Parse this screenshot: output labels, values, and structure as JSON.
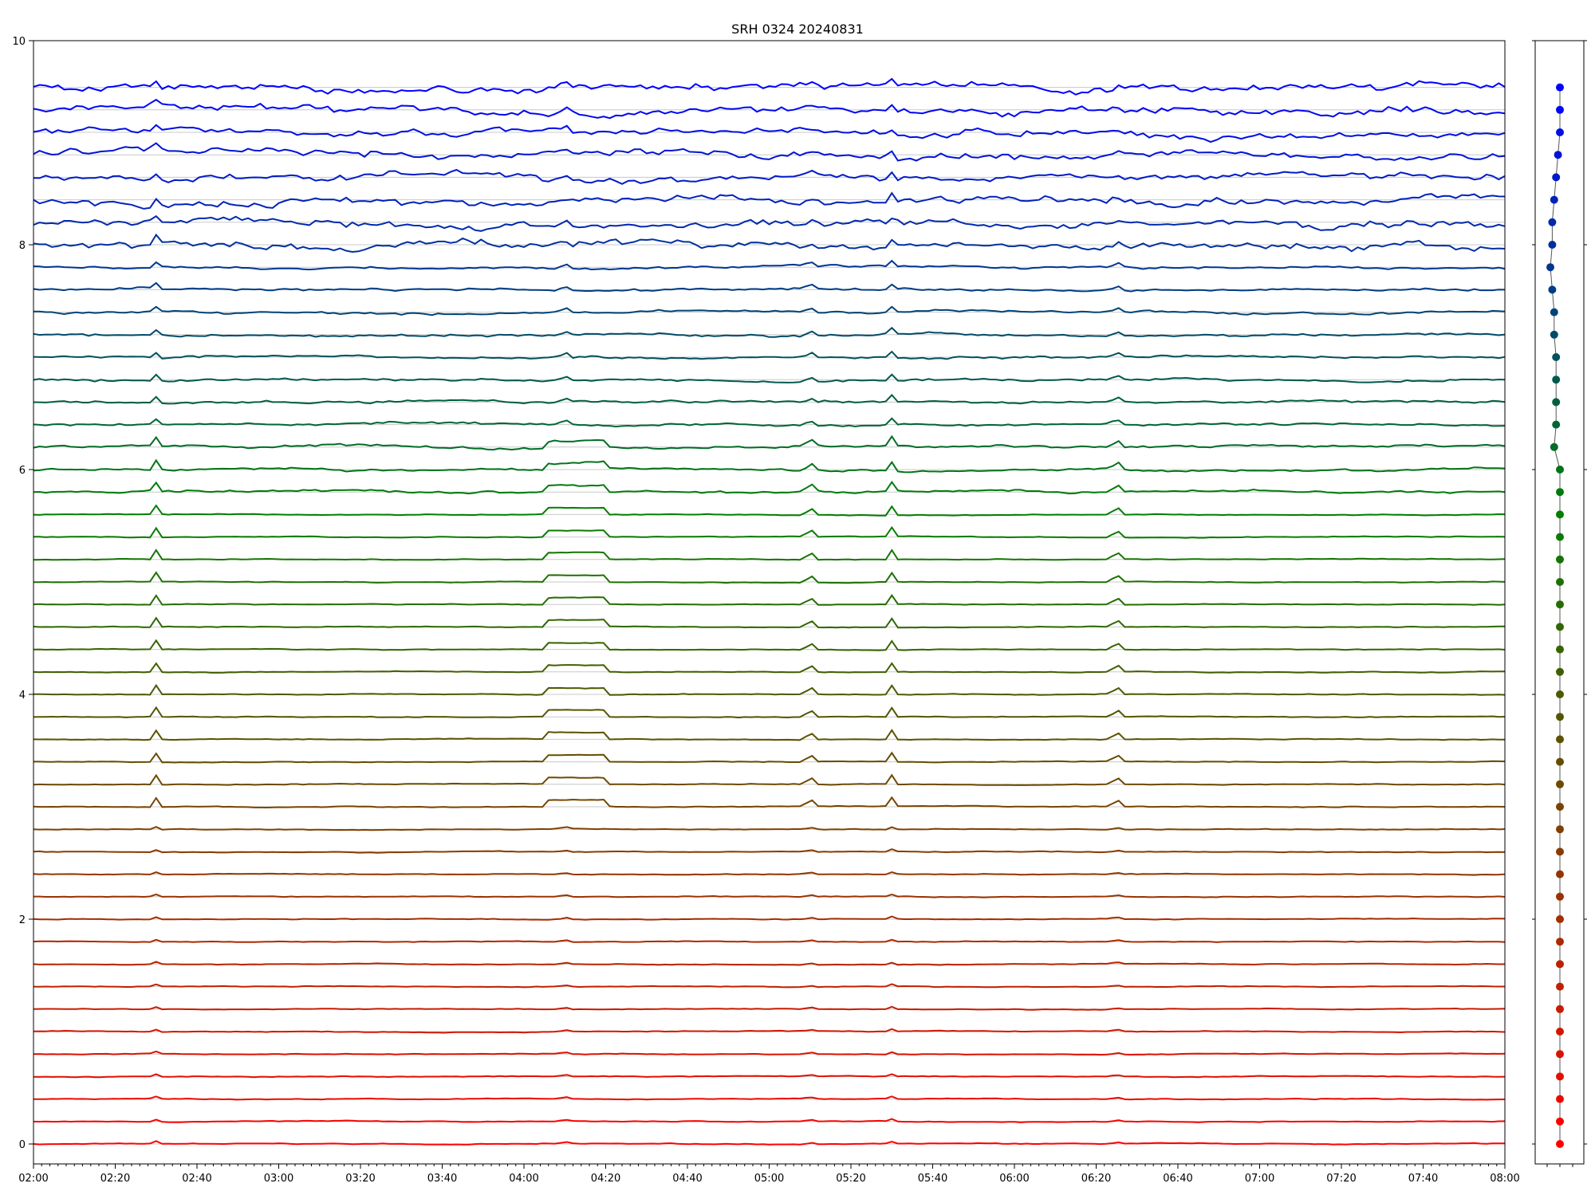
{
  "chart_data": [
    {
      "type": "line",
      "title": "SRH 0324 20240831",
      "xlabel": "",
      "ylabel": "",
      "xlim": [
        "02:00",
        "08:00"
      ],
      "ylim": [
        0,
        10
      ],
      "x_ticks": [
        "02:00",
        "02:20",
        "02:40",
        "03:00",
        "03:20",
        "03:40",
        "04:00",
        "04:20",
        "04:40",
        "05:00",
        "05:20",
        "05:40",
        "06:00",
        "06:20",
        "06:40",
        "07:00",
        "07:20",
        "07:40",
        "08:00"
      ],
      "y_ticks": [
        "0",
        "2",
        "4",
        "6",
        "8",
        "10"
      ],
      "grid": "horizontal",
      "series_count": 48,
      "offsets": [
        0.0,
        0.2,
        0.4,
        0.6,
        0.8,
        1.0,
        1.2,
        1.4,
        1.6,
        1.8,
        2.0,
        2.2,
        2.4,
        2.6,
        2.8,
        3.0,
        3.2,
        3.4,
        3.6,
        3.8,
        4.0,
        4.2,
        4.4,
        4.6,
        4.8,
        5.0,
        5.2,
        5.4,
        5.6,
        5.8,
        6.0,
        6.2,
        6.4,
        6.6,
        6.8,
        7.0,
        7.2,
        7.4,
        7.6,
        7.8,
        8.0,
        8.2,
        8.4,
        8.6,
        8.8,
        9.0,
        9.2,
        9.4
      ],
      "color_start": "#ff0000",
      "color_mid": "#008000",
      "color_end": "#0000ff",
      "common_events": [
        "02:30",
        "04:10",
        "05:10",
        "05:30",
        "06:25"
      ]
    },
    {
      "type": "scatter",
      "xlabel": "",
      "ylabel": "",
      "ylim": [
        0,
        10
      ],
      "y": [
        0.0,
        0.2,
        0.4,
        0.6,
        0.8,
        1.0,
        1.2,
        1.4,
        1.6,
        1.8,
        2.0,
        2.2,
        2.4,
        2.6,
        2.8,
        3.0,
        3.2,
        3.4,
        3.6,
        3.8,
        4.0,
        4.2,
        4.4,
        4.6,
        4.8,
        5.0,
        5.2,
        5.4,
        5.6,
        5.8,
        6.0,
        6.2,
        6.4,
        6.6,
        6.8,
        7.0,
        7.2,
        7.4,
        7.6,
        7.8,
        8.0,
        8.2,
        8.4,
        8.6,
        8.8,
        9.0,
        9.2,
        9.4
      ],
      "x": [
        0.0,
        0.0,
        0.0,
        0.0,
        0.0,
        0.0,
        0.0,
        0.0,
        0.0,
        0.0,
        0.0,
        0.0,
        0.0,
        0.0,
        0.0,
        0.0,
        0.0,
        0.0,
        0.0,
        0.0,
        0.0,
        0.0,
        0.0,
        0.0,
        0.0,
        0.0,
        0.0,
        0.0,
        0.0,
        0.0,
        0.0,
        -0.03,
        -0.02,
        -0.02,
        -0.02,
        -0.02,
        -0.03,
        -0.03,
        -0.04,
        -0.05,
        -0.04,
        -0.04,
        -0.03,
        -0.02,
        -0.01,
        0.0,
        0.0,
        0.0
      ]
    }
  ]
}
